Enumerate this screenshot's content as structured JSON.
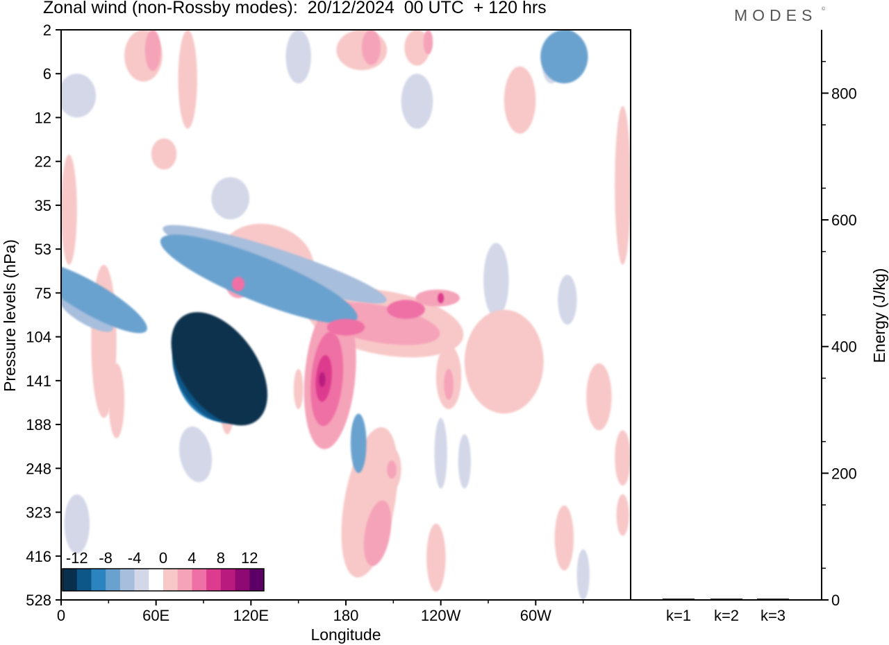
{
  "header": {
    "title": "Zonal wind (non-Rossby modes):  20/12/2024  00 UTC  + 120 hrs",
    "brand": "MODES",
    "brand_mark": "©"
  },
  "chart_data": [
    {
      "type": "heatmap",
      "xlabel": "Longitude",
      "ylabel": "Pressure levels (hPa)",
      "x_ticks": [
        "0",
        "60E",
        "120E",
        "180",
        "120W",
        "60W"
      ],
      "y_ticks": [
        "2",
        "6",
        "12",
        "22",
        "35",
        "53",
        "75",
        "104",
        "141",
        "188",
        "248",
        "323",
        "416",
        "528"
      ],
      "y_scale": "log",
      "colorbar": {
        "labels": [
          "-12",
          "-8",
          "-4",
          "0",
          "4",
          "8",
          "12"
        ],
        "colors": [
          "#08304d",
          "#0c5688",
          "#2b84bd",
          "#6aa2cf",
          "#a7bedc",
          "#d3d7e8",
          "#ffffff",
          "#f8c8c8",
          "#f5a3b9",
          "#ef70a4",
          "#dd3b8e",
          "#b81a7e",
          "#8e0a72",
          "#5c0066"
        ]
      },
      "features": [
        {
          "sign": "negative",
          "max_magnitude": 12,
          "lon_start": 62,
          "lon_end": 105,
          "p_top": 90,
          "p_bottom": 170
        },
        {
          "sign": "positive",
          "max_magnitude": 8,
          "lon_start": 160,
          "lon_end": 240,
          "p_top": 75,
          "p_bottom": 180
        },
        {
          "sign": "negative",
          "max_magnitude": 8,
          "lon_start": 310,
          "lon_end": 330,
          "p_top": 2,
          "p_bottom": 6
        }
      ],
      "grid": false
    },
    {
      "type": "bar",
      "categories": [
        "k=1",
        "k=2",
        "k=3"
      ],
      "values": [
        2,
        2,
        2
      ],
      "ylabel": "Energy (J/kg)",
      "y_ticks": [
        "0",
        "200",
        "400",
        "600",
        "800"
      ],
      "ylim": [
        0,
        900
      ]
    }
  ]
}
